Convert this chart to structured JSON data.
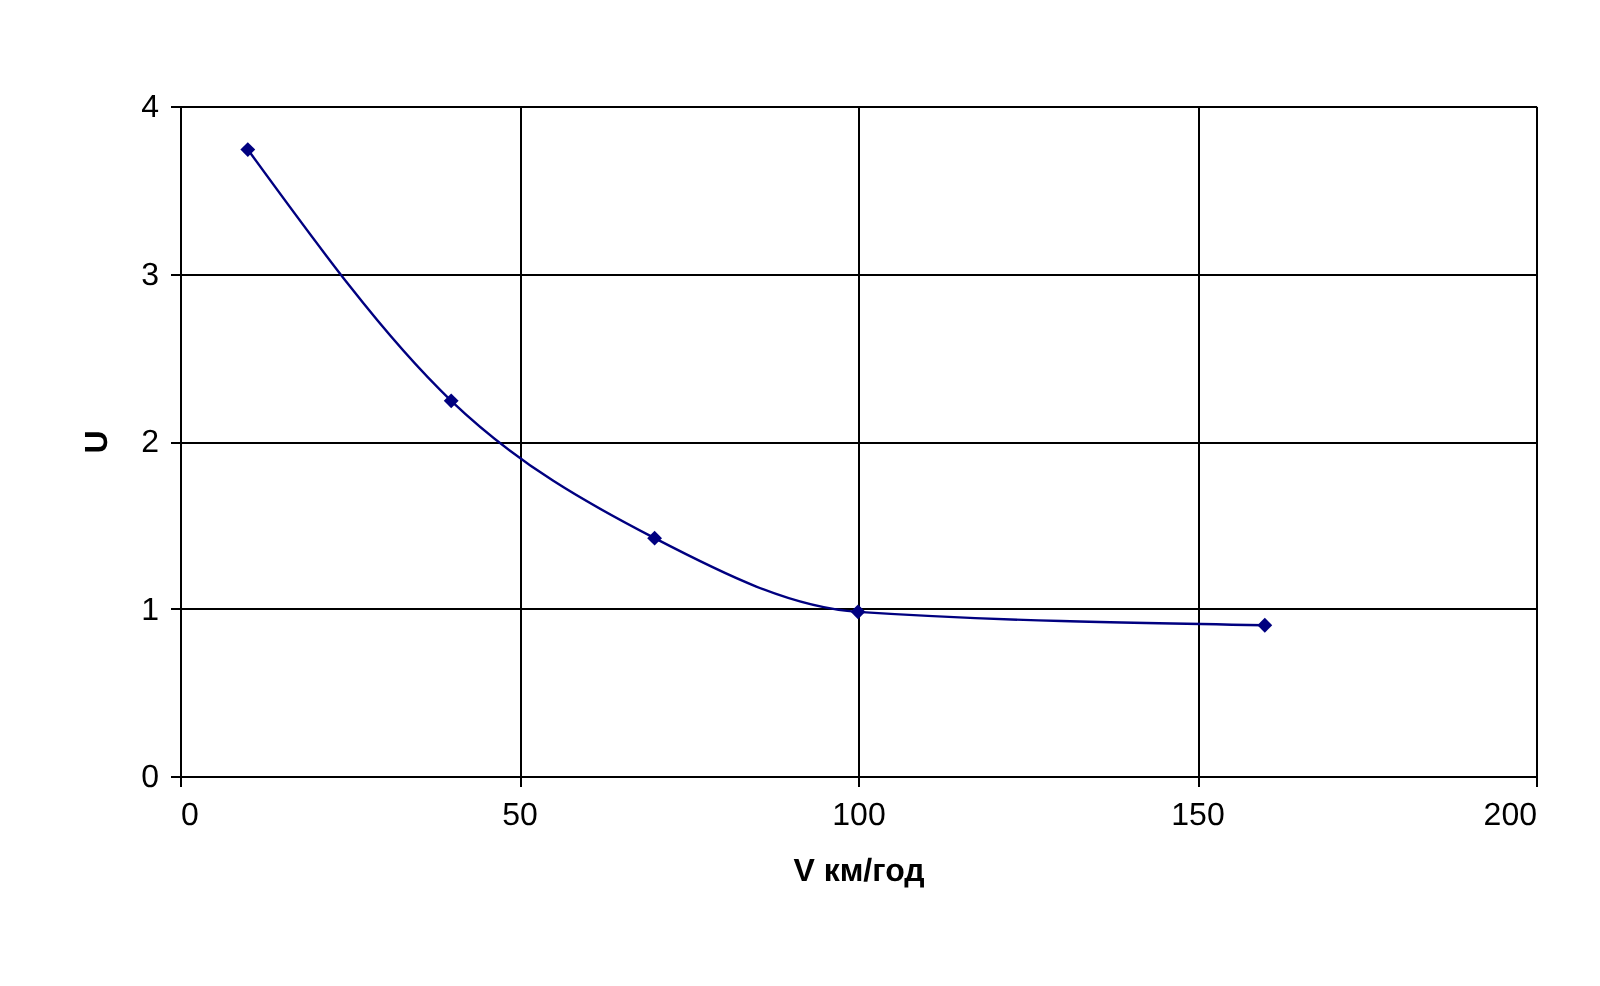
{
  "chart_data": {
    "type": "line",
    "xlabel": "V км/год",
    "ylabel": "U",
    "x": [
      10,
      40,
      70,
      100,
      160
    ],
    "series": [
      {
        "color": "#000080",
        "values": [
          3.74,
          2.24,
          1.42,
          0.98,
          0.9
        ]
      }
    ],
    "xlim": [
      0,
      200
    ],
    "xticks": [
      0,
      50,
      100,
      150,
      200
    ],
    "ylim": [
      0,
      4
    ],
    "yticks": [
      0,
      1,
      2,
      3,
      4
    ],
    "grid": true,
    "marker": "diamond",
    "line_style": "solid"
  }
}
